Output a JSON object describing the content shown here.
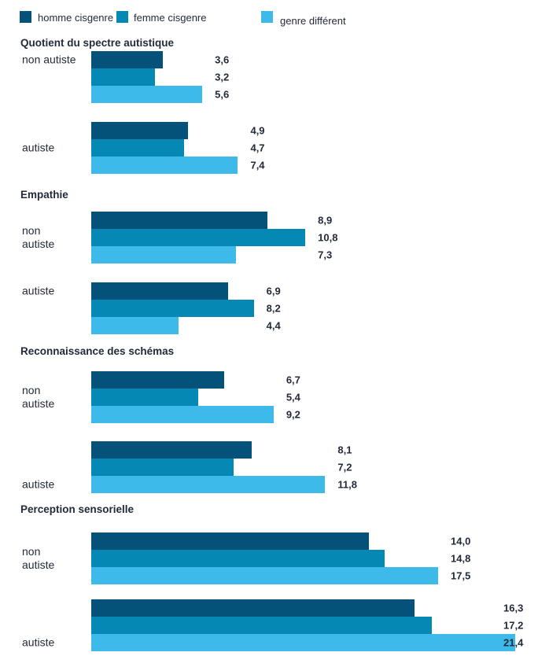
{
  "legend": {
    "items": [
      {
        "label": "homme cisgenre",
        "color": "#045179"
      },
      {
        "label": "femme cisgenre",
        "color": "#0688B5"
      },
      {
        "label": "genre différent",
        "color": "#3DBAEA"
      }
    ]
  },
  "chart_data": {
    "type": "bar",
    "orientation": "horizontal",
    "value_format": "comma-decimal",
    "xlim": [
      0,
      22
    ],
    "grid": false,
    "legend_position": "top",
    "series": [
      "homme cisgenre",
      "femme cisgenre",
      "genre différent"
    ],
    "sections": [
      {
        "title": "Quotient du spectre autistique",
        "groups": [
          {
            "label_lines": [
              "non autiste"
            ],
            "values": [
              3.6,
              3.2,
              5.6
            ],
            "labels": [
              "3,6",
              "3,2",
              "5,6"
            ],
            "label_valign": "bar0"
          },
          {
            "label_lines": [
              "autiste"
            ],
            "values": [
              4.9,
              4.7,
              7.4
            ],
            "labels": [
              "4,9",
              "4,7",
              "7,4"
            ],
            "label_valign": "middle"
          }
        ]
      },
      {
        "title": "Empathie",
        "groups": [
          {
            "label_lines": [
              "non",
              "autiste"
            ],
            "values": [
              8.9,
              10.8,
              7.3
            ],
            "labels": [
              "8,9",
              "10,8",
              "7,3"
            ],
            "label_valign": "middle"
          },
          {
            "label_lines": [
              "autiste"
            ],
            "values": [
              6.9,
              8.2,
              4.4
            ],
            "labels": [
              "6,9",
              "8,2",
              "4,4"
            ],
            "label_valign": "bar0"
          }
        ]
      },
      {
        "title": "Reconnaissance des schémas",
        "groups": [
          {
            "label_lines": [
              "non",
              "autiste"
            ],
            "values": [
              6.7,
              5.4,
              9.2
            ],
            "labels": [
              "6,7",
              "5,4",
              "9,2"
            ],
            "label_valign": "middle"
          },
          {
            "label_lines": [
              "autiste"
            ],
            "values": [
              8.1,
              7.2,
              11.8
            ],
            "labels": [
              "8,1",
              "7,2",
              "11,8"
            ],
            "label_valign": "bar2"
          }
        ]
      },
      {
        "title": "Perception sensorielle",
        "groups": [
          {
            "label_lines": [
              "non",
              "autiste"
            ],
            "values": [
              14.0,
              14.8,
              17.5
            ],
            "labels": [
              "14,0",
              "14,8",
              "17,5"
            ],
            "label_valign": "middle"
          },
          {
            "label_lines": [
              "autiste"
            ],
            "values": [
              16.3,
              17.2,
              21.4
            ],
            "labels": [
              "16,3",
              "17,2",
              "21,4"
            ],
            "label_valign": "bar2"
          }
        ]
      }
    ]
  },
  "colors": {
    "text": "#232a3a",
    "background": "#ffffff"
  }
}
